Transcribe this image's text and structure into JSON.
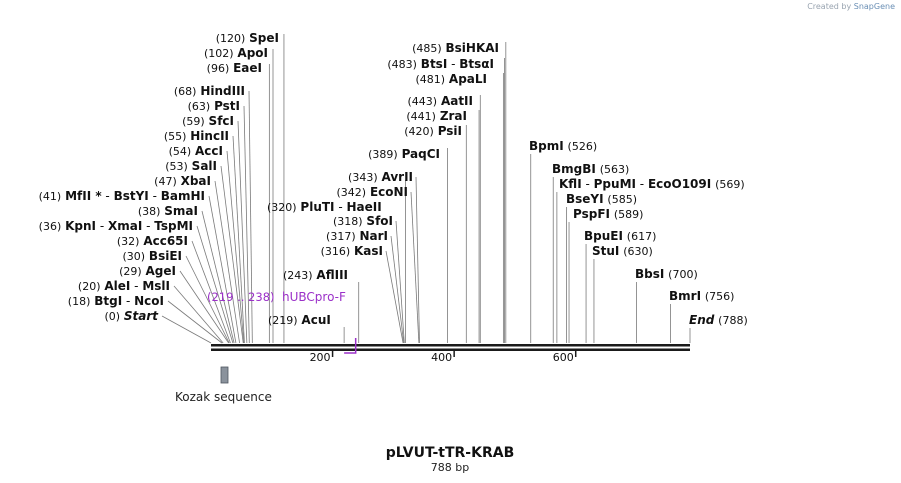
{
  "credit": {
    "prefix": "Created by",
    "brand": "SnapGene"
  },
  "map": {
    "name": "pLVUT-tTR-KRAB",
    "length_label": "788 bp",
    "length_bp": 788,
    "axis_ticks": [
      {
        "bp": 200,
        "label": "200"
      },
      {
        "bp": 400,
        "label": "400"
      },
      {
        "bp": 600,
        "label": "600"
      }
    ],
    "left_sites": [
      {
        "pos": "(120)",
        "names": [
          "SpeI"
        ],
        "bp": 120
      },
      {
        "pos": "(102)",
        "names": [
          "ApoI"
        ],
        "bp": 102
      },
      {
        "pos": "(96)",
        "names": [
          "EaeI"
        ],
        "bp": 96
      },
      {
        "pos": "(68)",
        "names": [
          "HindIII"
        ],
        "bp": 68
      },
      {
        "pos": "(63)",
        "names": [
          "PstI"
        ],
        "bp": 63
      },
      {
        "pos": "(59)",
        "names": [
          "SfcI"
        ],
        "bp": 59
      },
      {
        "pos": "(55)",
        "names": [
          "HincII"
        ],
        "bp": 55
      },
      {
        "pos": "(54)",
        "names": [
          "AccI"
        ],
        "bp": 54
      },
      {
        "pos": "(53)",
        "names": [
          "SalI"
        ],
        "bp": 53
      },
      {
        "pos": "(47)",
        "names": [
          "XbaI"
        ],
        "bp": 47
      },
      {
        "pos": "(41)",
        "names": [
          "MfII *",
          "BstYI",
          "BamHI"
        ],
        "bp": 41
      },
      {
        "pos": "(38)",
        "names": [
          "SmaI"
        ],
        "bp": 38
      },
      {
        "pos": "(36)",
        "names": [
          "KpnI",
          "XmaI",
          "TspMI"
        ],
        "bp": 36
      },
      {
        "pos": "(32)",
        "names": [
          "Acc65I"
        ],
        "bp": 32
      },
      {
        "pos": "(30)",
        "names": [
          "BsiEI"
        ],
        "bp": 30
      },
      {
        "pos": "(29)",
        "names": [
          "AgeI"
        ],
        "bp": 29
      },
      {
        "pos": "(20)",
        "names": [
          "AleI",
          "MslI"
        ],
        "bp": 20
      },
      {
        "pos": "(18)",
        "names": [
          "BtgI",
          "NcoI"
        ],
        "bp": 18
      },
      {
        "pos": "(0)",
        "names": [
          "Start"
        ],
        "bp": 0,
        "italic": true
      }
    ],
    "mid_sites": [
      {
        "pos": "(320)",
        "names": [
          "PluTI",
          "HaeII"
        ],
        "bp": 320
      },
      {
        "pos": "(243)",
        "names": [
          "AflIII"
        ],
        "bp": 243
      },
      {
        "pos": "(219)",
        "names": [
          "AcuI"
        ],
        "bp": 219
      }
    ],
    "center_sites": [
      {
        "pos": "(485)",
        "names": [
          "BsiHKAI"
        ],
        "bp": 485
      },
      {
        "pos": "(483)",
        "names": [
          "BtsI",
          "BtsαI"
        ],
        "bp": 483
      },
      {
        "pos": "(481)",
        "names": [
          "ApaLI"
        ],
        "bp": 481
      },
      {
        "pos": "(443)",
        "names": [
          "AatII"
        ],
        "bp": 443
      },
      {
        "pos": "(441)",
        "names": [
          "ZraI"
        ],
        "bp": 441
      },
      {
        "pos": "(420)",
        "names": [
          "PsiI"
        ],
        "bp": 420
      },
      {
        "pos": "(389)",
        "names": [
          "PaqCI"
        ],
        "bp": 389
      },
      {
        "pos": "(343)",
        "names": [
          "AvrII"
        ],
        "bp": 343
      },
      {
        "pos": "(342)",
        "names": [
          "EcoNI"
        ],
        "bp": 342
      },
      {
        "pos": "(318)",
        "names": [
          "SfoI"
        ],
        "bp": 318
      },
      {
        "pos": "(317)",
        "names": [
          "NarI"
        ],
        "bp": 317
      },
      {
        "pos": "(316)",
        "names": [
          "KasI"
        ],
        "bp": 316
      }
    ],
    "right_sites": [
      {
        "names": [
          "BpmI"
        ],
        "pos": "(526)",
        "bp": 526
      },
      {
        "names": [
          "BmgBI"
        ],
        "pos": "(563)",
        "bp": 563
      },
      {
        "names": [
          "KflI",
          "PpuMI",
          "EcoO109I"
        ],
        "pos": "(569)",
        "bp": 569
      },
      {
        "names": [
          "BseYI"
        ],
        "pos": "(585)",
        "bp": 585
      },
      {
        "names": [
          "PspFI"
        ],
        "pos": "(589)",
        "bp": 589
      },
      {
        "names": [
          "BpuEI"
        ],
        "pos": "(617)",
        "bp": 617
      },
      {
        "names": [
          "StuI"
        ],
        "pos": "(630)",
        "bp": 630
      },
      {
        "names": [
          "BbsI"
        ],
        "pos": "(700)",
        "bp": 700
      },
      {
        "names": [
          "BmrI"
        ],
        "pos": "(756)",
        "bp": 756
      },
      {
        "names": [
          "End"
        ],
        "pos": "(788)",
        "bp": 788,
        "italic": true
      }
    ],
    "primer": {
      "range": "(219 .. 238)",
      "name": "hUBCpro-F",
      "color": "#9b30c8"
    },
    "feature": {
      "name": "Kozak sequence",
      "color": "#8a929c"
    }
  }
}
